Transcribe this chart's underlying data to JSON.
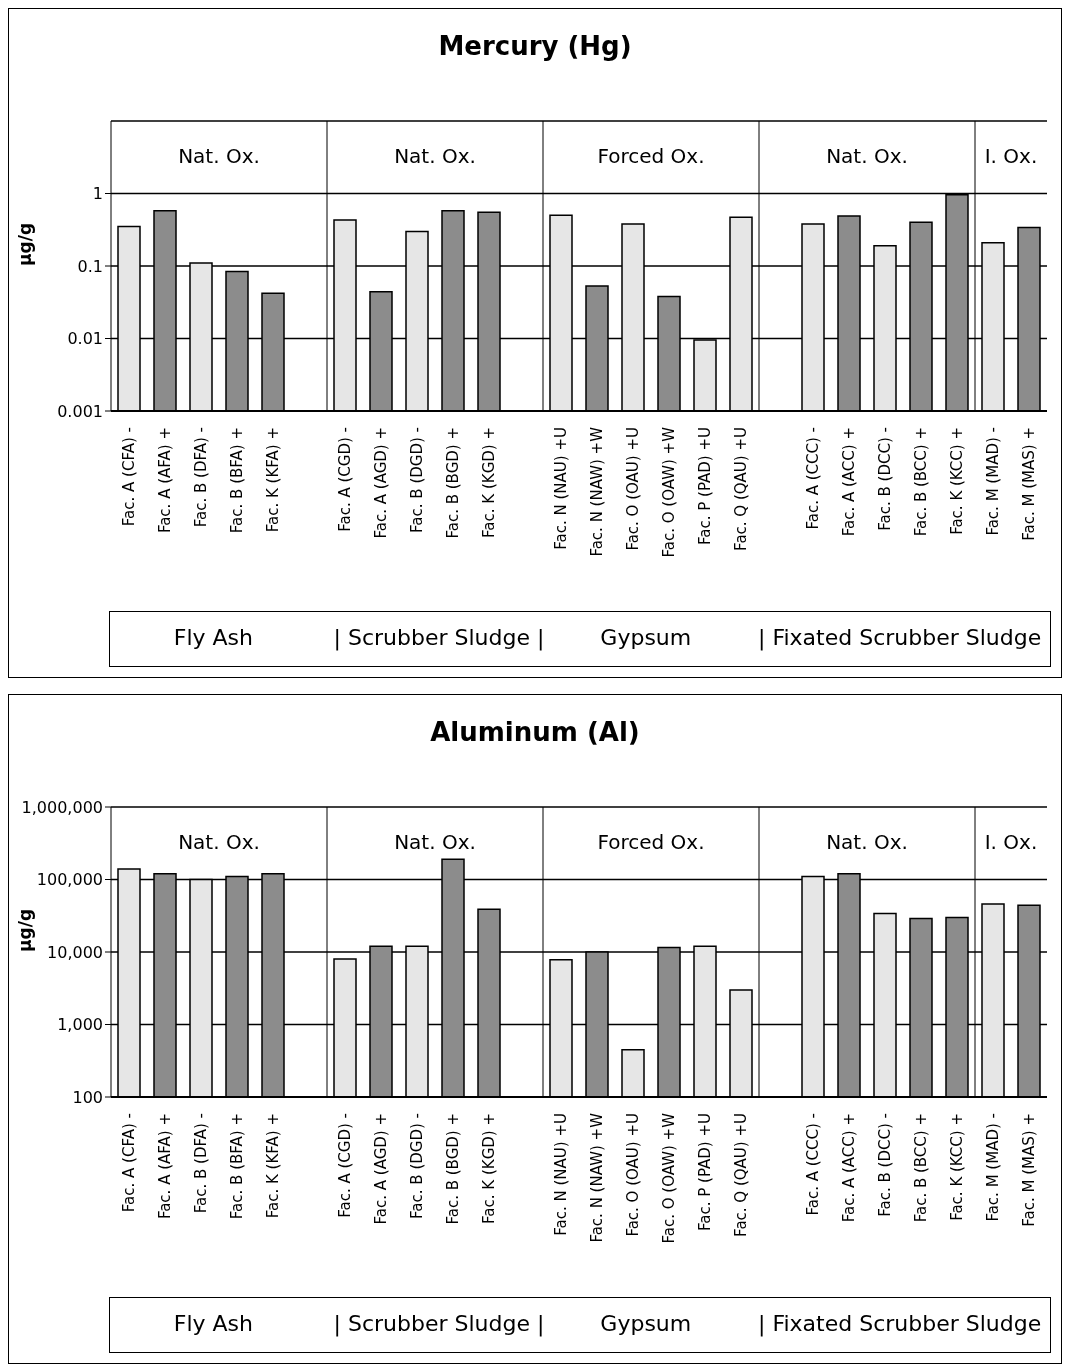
{
  "chart_data": [
    {
      "type": "bar",
      "title": "Mercury (Hg)",
      "ylabel": "µg/g",
      "log": true,
      "grid": "y",
      "categories": [
        "Fac. A (CFA) -",
        "Fac. A (AFA) +",
        "Fac. B (DFA) -",
        "Fac. B (BFA) +",
        "Fac. K (KFA) +",
        null,
        "Fac. A (CGD) -",
        "Fac. A (AGD) +",
        "Fac. B (DGD) -",
        "Fac. B (BGD) +",
        "Fac. K (KGD) +",
        null,
        "Fac. N (NAU) +U",
        "Fac. N (NAW) +W",
        "Fac. O (OAU) +U",
        "Fac. O (OAW) +W",
        "Fac. P (PAD) +U",
        "Fac. Q (QAU) +U",
        null,
        "Fac. A (CCC) -",
        "Fac. A (ACC) +",
        "Fac. B (DCC) -",
        "Fac. B (BCC) +",
        "Fac. K (KCC) +",
        "Fac. M (MAD) -",
        "Fac. M (MAS) +"
      ],
      "values": [
        0.35,
        0.58,
        0.11,
        0.084,
        0.042,
        null,
        0.43,
        0.044,
        0.3,
        0.58,
        0.55,
        null,
        0.5,
        0.053,
        0.38,
        0.038,
        0.0095,
        0.47,
        null,
        0.38,
        0.49,
        0.19,
        0.4,
        0.96,
        0.21,
        0.34
      ],
      "colors": [
        "#e6e6e6",
        "#8c8c8c",
        "#e6e6e6",
        "#8c8c8c",
        "#8c8c8c",
        null,
        "#e6e6e6",
        "#8c8c8c",
        "#e6e6e6",
        "#8c8c8c",
        "#8c8c8c",
        null,
        "#e6e6e6",
        "#8c8c8c",
        "#e6e6e6",
        "#8c8c8c",
        "#e6e6e6",
        "#e6e6e6",
        null,
        "#e6e6e6",
        "#8c8c8c",
        "#e6e6e6",
        "#8c8c8c",
        "#8c8c8c",
        "#e6e6e6",
        "#8c8c8c"
      ],
      "ylim": [
        0.001,
        10
      ],
      "yticks": [
        0.001,
        0.01,
        0.1,
        1
      ],
      "annotations": [
        "Nat. Ox.",
        "Nat. Ox.",
        "Forced Ox.",
        "Nat. Ox.",
        "I. Ox.",
        "Fly Ash",
        "| Scrubber Sludge |",
        "Gypsum",
        "| Fixated Scrubber Sludge"
      ]
    },
    {
      "type": "bar",
      "title": "Aluminum (Al)",
      "ylabel": "µg/g",
      "log": true,
      "grid": "y",
      "categories": [
        "Fac. A (CFA) -",
        "Fac. A (AFA) +",
        "Fac. B (DFA) -",
        "Fac. B (BFA) +",
        "Fac. K (KFA) +",
        null,
        "Fac. A (CGD) -",
        "Fac. A (AGD) +",
        "Fac. B (DGD) -",
        "Fac. B (BGD) +",
        "Fac. K (KGD) +",
        null,
        "Fac. N (NAU) +U",
        "Fac. N (NAW) +W",
        "Fac. O (OAU) +U",
        "Fac. O (OAW) +W",
        "Fac. P (PAD) +U",
        "Fac. Q (QAU) +U",
        null,
        "Fac. A (CCC) -",
        "Fac. A (ACC) +",
        "Fac. B (DCC) -",
        "Fac. B (BCC) +",
        "Fac. K (KCC) +",
        "Fac. M (MAD) -",
        "Fac. M (MAS) +"
      ],
      "values": [
        140000,
        120000,
        100000,
        110000,
        120000,
        null,
        8000,
        12000,
        12000,
        190000,
        39000,
        null,
        7800,
        10000,
        450,
        11500,
        12000,
        3000,
        null,
        110000,
        120000,
        34000,
        29000,
        30000,
        46000,
        44000
      ],
      "colors": [
        "#e6e6e6",
        "#8c8c8c",
        "#e6e6e6",
        "#8c8c8c",
        "#8c8c8c",
        null,
        "#e6e6e6",
        "#8c8c8c",
        "#e6e6e6",
        "#8c8c8c",
        "#8c8c8c",
        null,
        "#e6e6e6",
        "#8c8c8c",
        "#e6e6e6",
        "#8c8c8c",
        "#e6e6e6",
        "#e6e6e6",
        null,
        "#e6e6e6",
        "#8c8c8c",
        "#e6e6e6",
        "#8c8c8c",
        "#8c8c8c",
        "#e6e6e6",
        "#8c8c8c"
      ],
      "ylim": [
        100,
        1000000
      ],
      "yticks": [
        100,
        {
          "value": 1000,
          "label": "1,000"
        },
        {
          "value": 10000,
          "label": "10,000"
        },
        {
          "value": 100000,
          "label": "100,000"
        },
        {
          "value": 1000000,
          "label": "1,000,000"
        }
      ],
      "annotations": [
        "Nat. Ox.",
        "Nat. Ox.",
        "Forced Ox.",
        "Nat. Ox.",
        "I. Ox.",
        "Fly Ash",
        "| Scrubber Sludge |",
        "Gypsum",
        "| Fixated Scrubber Sludge"
      ]
    }
  ]
}
